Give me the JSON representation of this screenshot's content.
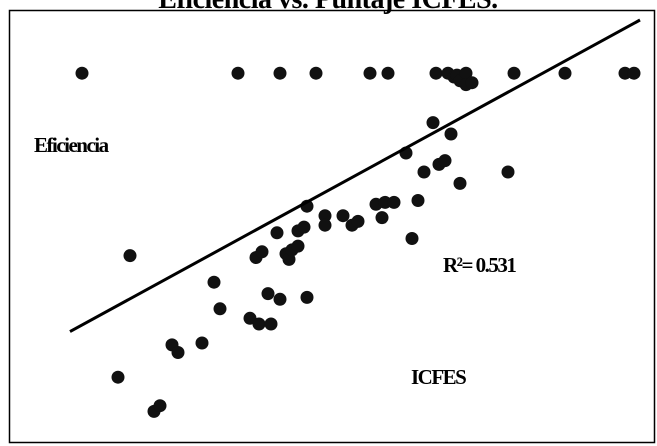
{
  "chart_data": {
    "type": "scatter",
    "title": "Eficiencia vs. Puntaje ICFES.",
    "annotations": {
      "ylabel": "Eficiencia",
      "xlabel": "ICFES",
      "r2": "R²= 0.531"
    },
    "trendline": {
      "x": [
        0.05,
        1.0
      ],
      "y": [
        0.18,
        1.0
      ]
    },
    "colors": {
      "points": "#111111",
      "line": "#000000",
      "frame": "#000000"
    },
    "grid": false,
    "legend": "none",
    "points": [
      {
        "x": 0.07,
        "y": 0.86
      },
      {
        "x": 0.15,
        "y": 0.38
      },
      {
        "x": 0.13,
        "y": 0.06
      },
      {
        "x": 0.19,
        "y": -0.03
      },
      {
        "x": 0.2,
        "y": -0.015
      },
      {
        "x": 0.22,
        "y": 0.145
      },
      {
        "x": 0.23,
        "y": 0.125
      },
      {
        "x": 0.27,
        "y": 0.15
      },
      {
        "x": 0.29,
        "y": 0.31
      },
      {
        "x": 0.3,
        "y": 0.24
      },
      {
        "x": 0.33,
        "y": 0.86
      },
      {
        "x": 0.35,
        "y": 0.215
      },
      {
        "x": 0.36,
        "y": 0.375
      },
      {
        "x": 0.365,
        "y": 0.2
      },
      {
        "x": 0.37,
        "y": 0.39
      },
      {
        "x": 0.385,
        "y": 0.2
      },
      {
        "x": 0.395,
        "y": 0.44
      },
      {
        "x": 0.4,
        "y": 0.86
      },
      {
        "x": 0.4,
        "y": 0.265
      },
      {
        "x": 0.41,
        "y": 0.385
      },
      {
        "x": 0.415,
        "y": 0.37
      },
      {
        "x": 0.42,
        "y": 0.395
      },
      {
        "x": 0.43,
        "y": 0.445
      },
      {
        "x": 0.44,
        "y": 0.455
      },
      {
        "x": 0.445,
        "y": 0.51
      },
      {
        "x": 0.46,
        "y": 0.86
      },
      {
        "x": 0.475,
        "y": 0.485
      },
      {
        "x": 0.475,
        "y": 0.46
      },
      {
        "x": 0.505,
        "y": 0.485
      },
      {
        "x": 0.52,
        "y": 0.46
      },
      {
        "x": 0.53,
        "y": 0.47
      },
      {
        "x": 0.55,
        "y": 0.86
      },
      {
        "x": 0.56,
        "y": 0.515
      },
      {
        "x": 0.57,
        "y": 0.48
      },
      {
        "x": 0.575,
        "y": 0.52
      },
      {
        "x": 0.58,
        "y": 0.86
      },
      {
        "x": 0.59,
        "y": 0.52
      },
      {
        "x": 0.61,
        "y": 0.65
      },
      {
        "x": 0.62,
        "y": 0.425
      },
      {
        "x": 0.63,
        "y": 0.525
      },
      {
        "x": 0.64,
        "y": 0.6
      },
      {
        "x": 0.655,
        "y": 0.73
      },
      {
        "x": 0.66,
        "y": 0.86
      },
      {
        "x": 0.665,
        "y": 0.62
      },
      {
        "x": 0.675,
        "y": 0.63
      },
      {
        "x": 0.68,
        "y": 0.86
      },
      {
        "x": 0.685,
        "y": 0.7
      },
      {
        "x": 0.69,
        "y": 0.85
      },
      {
        "x": 0.695,
        "y": 0.855
      },
      {
        "x": 0.7,
        "y": 0.84
      },
      {
        "x": 0.71,
        "y": 0.86
      },
      {
        "x": 0.7,
        "y": 0.57
      },
      {
        "x": 0.71,
        "y": 0.83
      },
      {
        "x": 0.72,
        "y": 0.835
      },
      {
        "x": 0.78,
        "y": 0.6
      },
      {
        "x": 0.79,
        "y": 0.86
      },
      {
        "x": 0.875,
        "y": 0.86
      },
      {
        "x": 0.975,
        "y": 0.86
      },
      {
        "x": 0.99,
        "y": 0.86
      },
      {
        "x": 0.445,
        "y": 0.27
      },
      {
        "x": 0.38,
        "y": 0.28
      },
      {
        "x": 0.43,
        "y": 0.405
      }
    ]
  }
}
